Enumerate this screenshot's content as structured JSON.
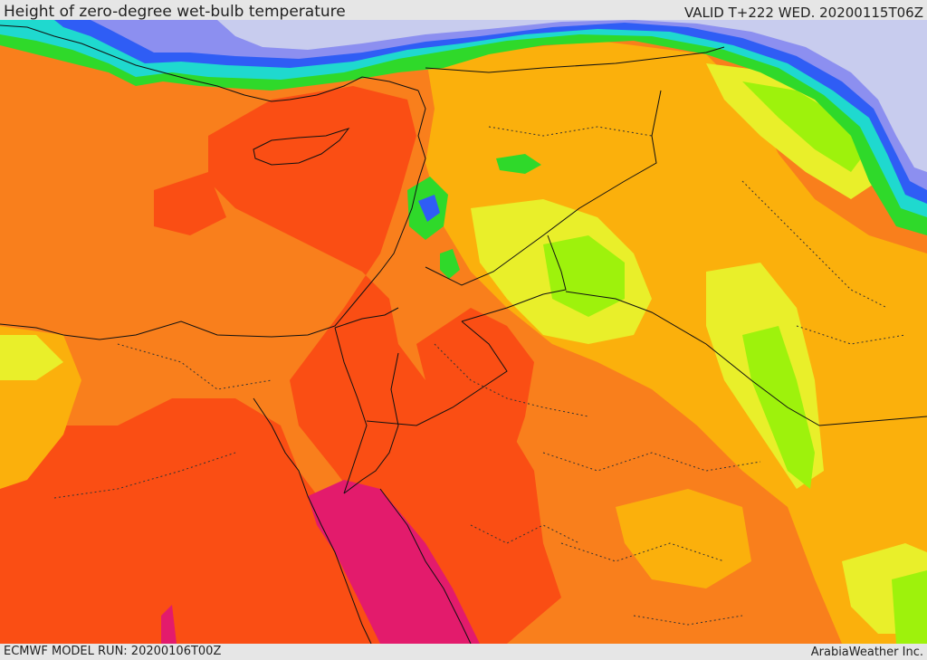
{
  "header": {
    "title": "Height of zero-degree wet-bulb temperature",
    "valid": "VALID T+222 WED. 20200115T06Z"
  },
  "footer": {
    "model_run": "ECMWF MODEL RUN: 20200106T00Z",
    "credit": "ArabiaWeather Inc."
  },
  "palette": {
    "background": "#e6e6e6",
    "deep_orange": "#fa4e14",
    "orange": "#f97f1c",
    "amber": "#fbb00c",
    "yellow": "#e9ef2a",
    "lime": "#9ef20c",
    "green": "#2fd92a",
    "cyan": "#1fd9cf",
    "blue": "#2f5df5",
    "periwinkle": "#8c8ff0",
    "lavender": "#c8ccee",
    "magenta": "#e31b6c",
    "border": "#111111"
  }
}
